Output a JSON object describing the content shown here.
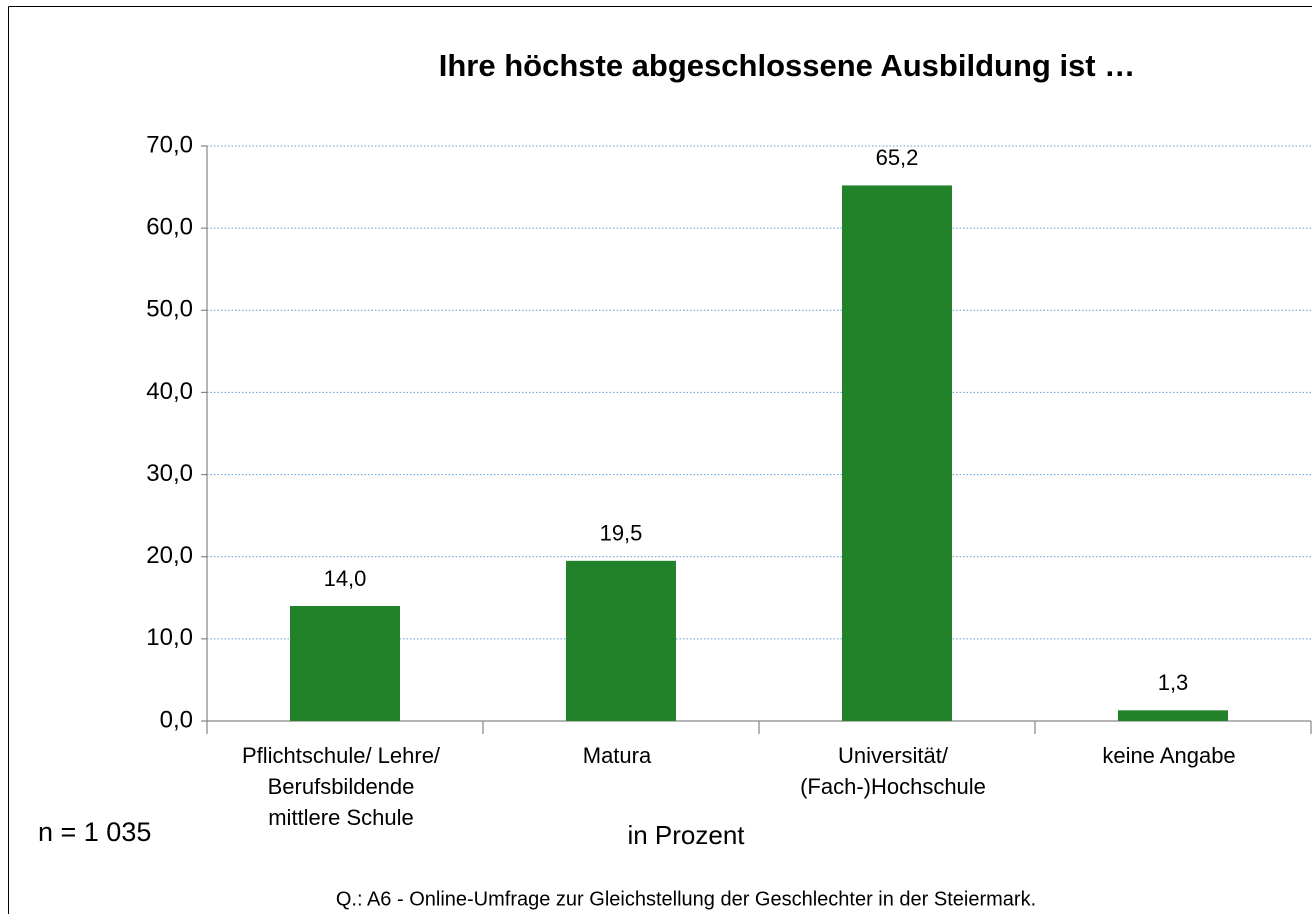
{
  "chart_data": {
    "type": "bar",
    "title": "Ihre höchste abgeschlossene Ausbildung ist …",
    "categories": [
      [
        "Pflichtschule/ Lehre/",
        "Berufsbildende",
        "mittlere Schule"
      ],
      [
        "Matura"
      ],
      [
        "Universität/",
        "(Fach-)Hochschule"
      ],
      [
        "keine Angabe"
      ]
    ],
    "values": [
      14.0,
      19.5,
      65.2,
      1.3
    ],
    "value_labels": [
      "14,0",
      "19,5",
      "65,2",
      "1,3"
    ],
    "color": "#21822a",
    "ylim": [
      0,
      70
    ],
    "yticks": [
      {
        "value": 0,
        "label": "0,0"
      },
      {
        "value": 10,
        "label": "10,0"
      },
      {
        "value": 20,
        "label": "20,0"
      },
      {
        "value": 30,
        "label": "30,0"
      },
      {
        "value": 40,
        "label": "40,0"
      },
      {
        "value": 50,
        "label": "50,0"
      },
      {
        "value": 60,
        "label": "60,0"
      },
      {
        "value": 70,
        "label": "70,0"
      }
    ],
    "grid": true,
    "sample_note": "n =  1 035",
    "unit_note": "in Prozent",
    "source": "Q.: A6 - Online-Umfrage  zur Gleichstellung  der Geschlechter  in der Steiermark."
  }
}
